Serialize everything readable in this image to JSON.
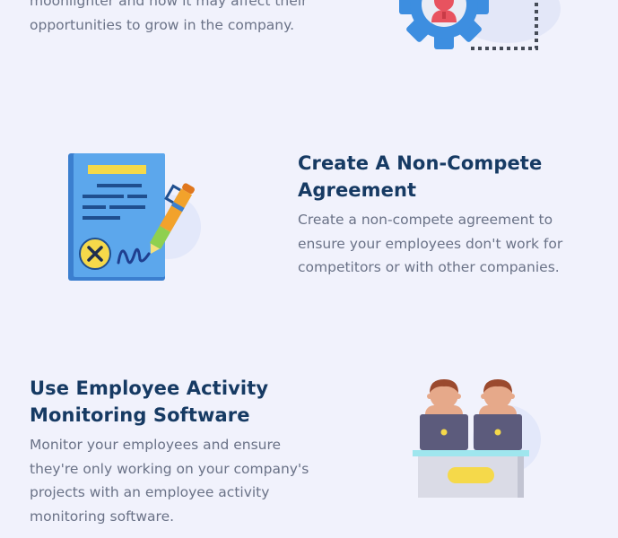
{
  "sections": [
    {
      "body_lines": [
        "moonlighter and how it may affect their",
        "opportunities to grow in the company."
      ],
      "icon": "gear-person-icon"
    },
    {
      "heading_lines": [
        "Create A Non-Compete",
        "Agreement"
      ],
      "body_lines": [
        "Create a non-compete agreement to",
        "ensure your employees don't work for",
        "competitors or with other companies."
      ],
      "icon": "signed-document-icon"
    },
    {
      "heading_lines": [
        "Use Employee Activity",
        "Monitoring Software"
      ],
      "body_lines": [
        "Monitor your employees and ensure",
        "they're only working on your company's",
        "projects with an employee activity",
        "monitoring software."
      ],
      "icon": "employees-at-desk-icon"
    }
  ],
  "colors": {
    "background": "#f1f2fc",
    "heading": "#163a63",
    "body": "#6a7287",
    "accent_blue": "#3d8ee0",
    "accent_yellow": "#f5d94a",
    "accent_red": "#e8535f"
  }
}
